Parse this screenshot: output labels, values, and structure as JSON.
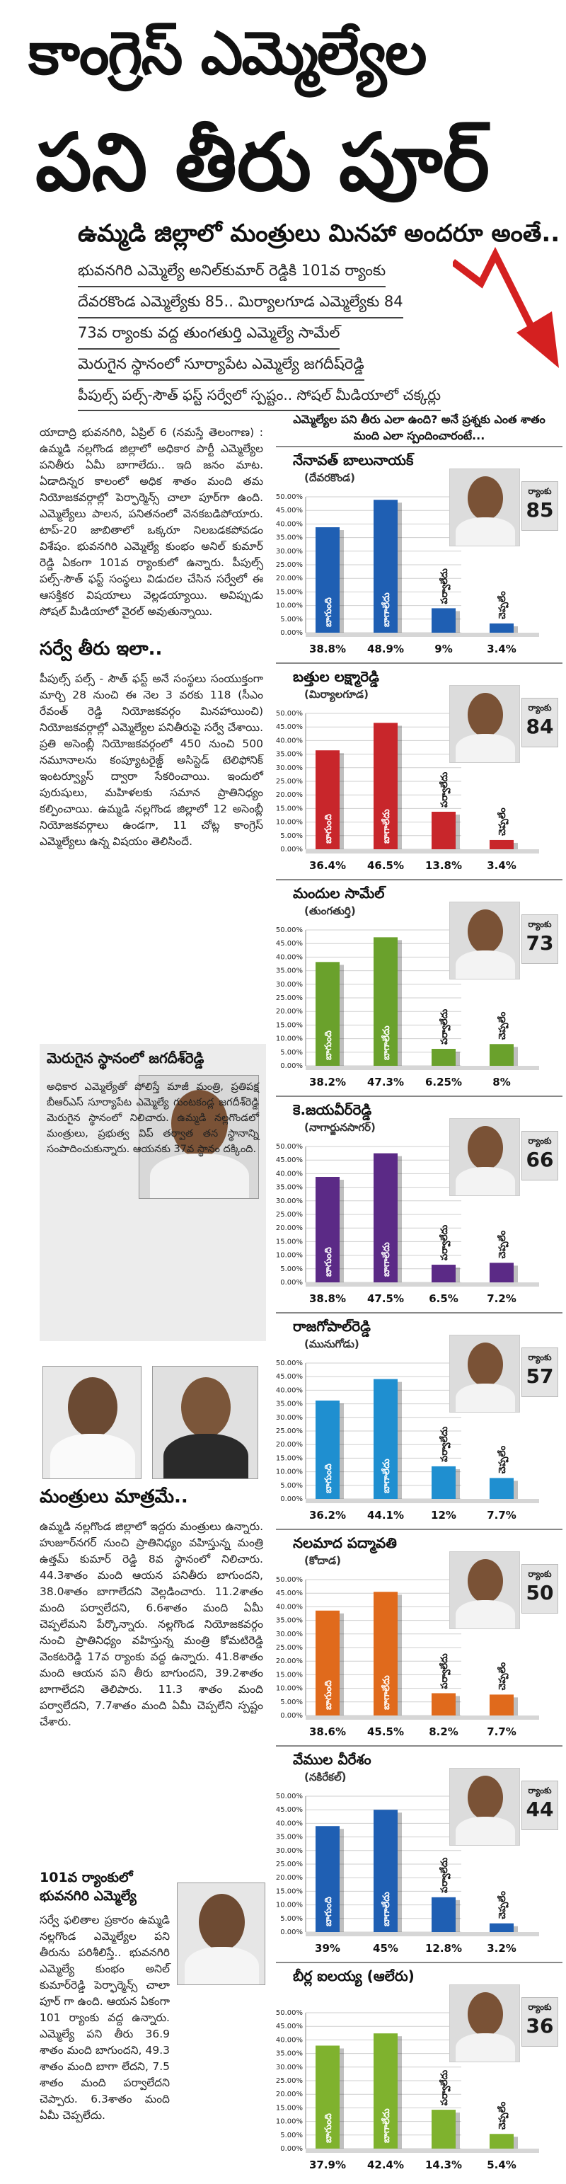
{
  "headline": {
    "line1": "కాంగ్రెస్ ఎమ్మెల్యేల",
    "line2": "పని తీరు పూర్",
    "subline": "ఉమ్మడి జిల్లాలో మంత్రులు మినహా అందరూ అంతే..",
    "kickers": [
      "భువనగిరి ఎమ్మెల్యే అనిల్‌కుమార్ రెడ్డికి 101వ ర్యాంకు",
      "దేవరకొండ ఎమ్మెల్యేకు 85.. మిర్యాలగూడ ఎమ్మెల్యేకు 84",
      "73వ ర్యాంకు వద్ద తుంగతుర్తి ఎమ్మెల్యే సామేల్",
      "మెరుగైన స్థానంలో సూర్యాపేట ఎమ్మెల్యే జగదీష్‌రెడ్డి",
      "పీపుల్స్ పల్స్-సౌత్ ఫస్ట్ సర్వేలో స్పష్టం.. సోషల్ మీడియాలో చక్కర్లు"
    ]
  },
  "left": {
    "intro": "యాదాద్రి భువనగిరి, ఏప్రిల్ 6 (నమస్తే తెలంగాణ) : ఉమ్మడి నల్లగొండ జిల్లాలో అధికార పార్టీ ఎమ్మెల్యేల పనితీరు ఏమీ బాగాలేదు.. ఇది జనం మాట. ఏడాదిన్నర కాలంలో అధిక శాతం మంది తమ నియోజకవర్గాల్లో పెర్ఫార్మెన్స్ చాలా పూర్‌గా ఉంది. ఎమ్మెల్యేలు పాలన, పనితనంలో వెనకబడిపోయారు. టాప్-20 జాబితాలో ఒక్కరూ నిలబడకపోవడం విశేషం. భువనగిరి ఎమ్మెల్యే కుంభం అనిల్ కుమార్ రెడ్డి ఏకంగా 101వ ర్యాంకులో ఉన్నారు. పీపుల్స్ పల్స్-సౌత్ ఫస్ట్ సంస్థలు విడుదల చేసిన సర్వేలో ఈ ఆసక్తికర విషయాలు వెల్లడయ్యాయి. అవిప్పుడు సోషల్ మీడియాలో వైరల్ అవుతున్నాయి.",
    "s1_title": "సర్వే తీరు ఇలా..",
    "s1_text": "పీపుల్స్ పల్స్ - సౌత్ ఫస్ట్ అనే సంస్థలు సంయుక్తంగా మార్చి 28 నుంచి ఈ నెల 3 వరకు 118 (సీఎం రేవంత్ రెడ్డి నియోజకవర్గం మినహాయించి) నియోజకవర్గాల్లో ఎమ్మెల్యేల పనితీరుపై సర్వే చేశాయి. ప్రతి అసెంబ్లీ నియోజకవర్గంలో 450 నుంచి 500 నమూనాలను కంప్యూటరైజ్డ్ అసిస్టెడ్ టెలిఫోనిక్ ఇంటర్వ్యూస్ ద్వారా సేకరించాయి. ఇందులో పురుషులు, మహిళలకు సమాన ప్రాతినిధ్యం కల్పించాయి. ఉమ్మడి నల్లగొండ జిల్లాలో 12 అసెంబ్లీ నియోజకవర్గాలు ఉండగా, 11 చోట్ల కాంగ్రెస్ ఎమ్మెల్యేలు ఉన్న విషయం తెలిసిందే.",
    "box_title": "మెరుగైన స్థానంలో జగదీశ్‌రెడ్డి",
    "box_text": "అధికార ఎమ్మెల్యేతో పోలిస్తే మాజీ మంత్రి, ప్రతిపక్ష బీఆర్‌ఎస్ సూర్యాపేట ఎమ్మెల్యే గుంటకండ్ల జగదీశ్‌రెడ్డి మెరుగైన స్థానంలో నిలిచారు. ఉమ్మడి నల్లగొండలో మంత్రులు, ప్రభుత్వ విప్ తర్వాత తన స్థానాన్ని సంపాదించుకున్నారు. ఆయనకు 37వ స్థానం దక్కింది.",
    "s2_title": "మంత్రులు మాత్రమే..",
    "s2_text": "ఉమ్మడి నల్లగొండ జిల్లాలో ఇద్దరు మంత్రులు ఉన్నారు. హుజూర్‌నగర్ నుంచి ప్రాతినిధ్యం వహిస్తున్న మంత్రి ఉత్తమ్ కుమార్ రెడ్డి 8వ స్థానంలో నిలిచారు. 44.3శాతం మంది ఆయన పనితీరు బాగుందని, 38.0శాతం బాగాలేదని వెల్లడించారు. 11.2శాతం మంది పర్వాలేదని, 6.6శాతం మంది ఏమీ చెప్పలేమని పేర్కొన్నారు. నల్లగొండ నియోజకవర్గం నుంచి ప్రాతినిధ్యం వహిస్తున్న మంత్రి కోమటిరెడ్డి వెంకటరెడ్డి 17వ ర్యాంకు వద్ద ఉన్నారు. 41.8శాతం మంది ఆయన పని తీరు బాగుందని, 39.2శాతం బాగాలేదని తెలిపారు. 11.3 శాతం మంది పర్వాలేదని, 7.7శాతం మంది ఏమీ చెప్పలేని స్పష్టం చేశారు.",
    "s3_title": "101వ ర్యాంకులో భువనగిరి ఎమ్మెల్యే",
    "s3_text": "సర్వే ఫలితాల ప్రకారం ఉమ్మడి నల్లగొండ ఎమ్మెల్యేల పని తీరును పరిశీలిస్తే.. భువనగిరి ఎమ్మెల్యే కుంభం అనిల్ కుమార్‌రెడ్డి పెర్ఫార్మెన్స్ చాలా పూర్ గా ఉంది. ఆయన ఏకంగా 101 ర్యాంకు వద్ద ఉన్నారు. ఎమ్మెల్యే పని తీరు 36.9 శాతం మంది బాగుందని, 49.3 శాతం మంది బాగా లేదని, 7.5 శాతం మంది పర్వాలేదని చెప్పారు. 6.3శాతం మంది ఏమీ చెప్పలేదు."
  },
  "right": {
    "panel_head": "ఎమ్మెల్యేల పని తీరు ఎలా ఉంది? అనే ప్రశ్నకు ఎంత శాతం మంది ఎలా స్పందించారంటే...",
    "rank_label": "ర్యాంకు",
    "category_labels": [
      "బాగుంది",
      "బాగాలేదు",
      "పర్వాలేదు",
      "చెప్పలేం"
    ],
    "cards": [
      {
        "name": "నేనావత్ బాలునాయక్",
        "constituency": "(దేవరకొండ)",
        "rank": "85",
        "color": "#1f5fb3",
        "pcts": [
          "38.8%",
          "48.9%",
          "9%",
          "3.4%"
        ],
        "values": [
          38.8,
          48.9,
          9,
          3.4
        ]
      },
      {
        "name": "బత్తుల లక్ష్మారెడ్డి",
        "constituency": "(మిర్యాలగూడ)",
        "rank": "84",
        "color": "#c8262b",
        "pcts": [
          "36.4%",
          "46.5%",
          "13.8%",
          "3.4%"
        ],
        "values": [
          36.4,
          46.5,
          13.8,
          3.4
        ]
      },
      {
        "name": "మందుల సామేల్",
        "constituency": "(తుంగతుర్తి)",
        "rank": "73",
        "color": "#6aa12c",
        "pcts": [
          "38.2%",
          "47.3%",
          "6.25%",
          "8%"
        ],
        "values": [
          38.2,
          47.3,
          6.25,
          8
        ]
      },
      {
        "name": "కె.జయవీర్‌రెడ్డి",
        "constituency": "(నాగార్జునసాగర్)",
        "rank": "66",
        "color": "#5b2a86",
        "pcts": [
          "38.8%",
          "47.5%",
          "6.5%",
          "7.2%"
        ],
        "values": [
          38.8,
          47.5,
          6.5,
          7.2
        ]
      },
      {
        "name": "రాజగోపాల్‌రెడ్డి",
        "constituency": "(మునుగోడు)",
        "rank": "57",
        "color": "#1f8fd0",
        "pcts": [
          "36.2%",
          "44.1%",
          "12%",
          "7.7%"
        ],
        "values": [
          36.2,
          44.1,
          12,
          7.7
        ]
      },
      {
        "name": "నలమాద పద్మావతి",
        "constituency": "(కోదాడ)",
        "rank": "50",
        "color": "#e06a1c",
        "pcts": [
          "38.6%",
          "45.5%",
          "8.2%",
          "7.7%"
        ],
        "values": [
          38.6,
          45.5,
          8.2,
          7.7
        ]
      },
      {
        "name": "వేముల వీరేశం",
        "constituency": "(నకిరేకల్)",
        "rank": "44",
        "color": "#1f5fb3",
        "pcts": [
          "39%",
          "45%",
          "12.8%",
          "3.2%"
        ],
        "values": [
          39,
          45,
          12.8,
          3.2
        ]
      },
      {
        "name": "బీర్ల ఐలయ్య (ఆలేరు)",
        "constituency": "",
        "rank": "36",
        "color": "#7fb22e",
        "pcts": [
          "37.9%",
          "42.4%",
          "14.3%",
          "5.4%"
        ],
        "values": [
          37.9,
          42.4,
          14.3,
          5.4
        ]
      }
    ]
  }
}
